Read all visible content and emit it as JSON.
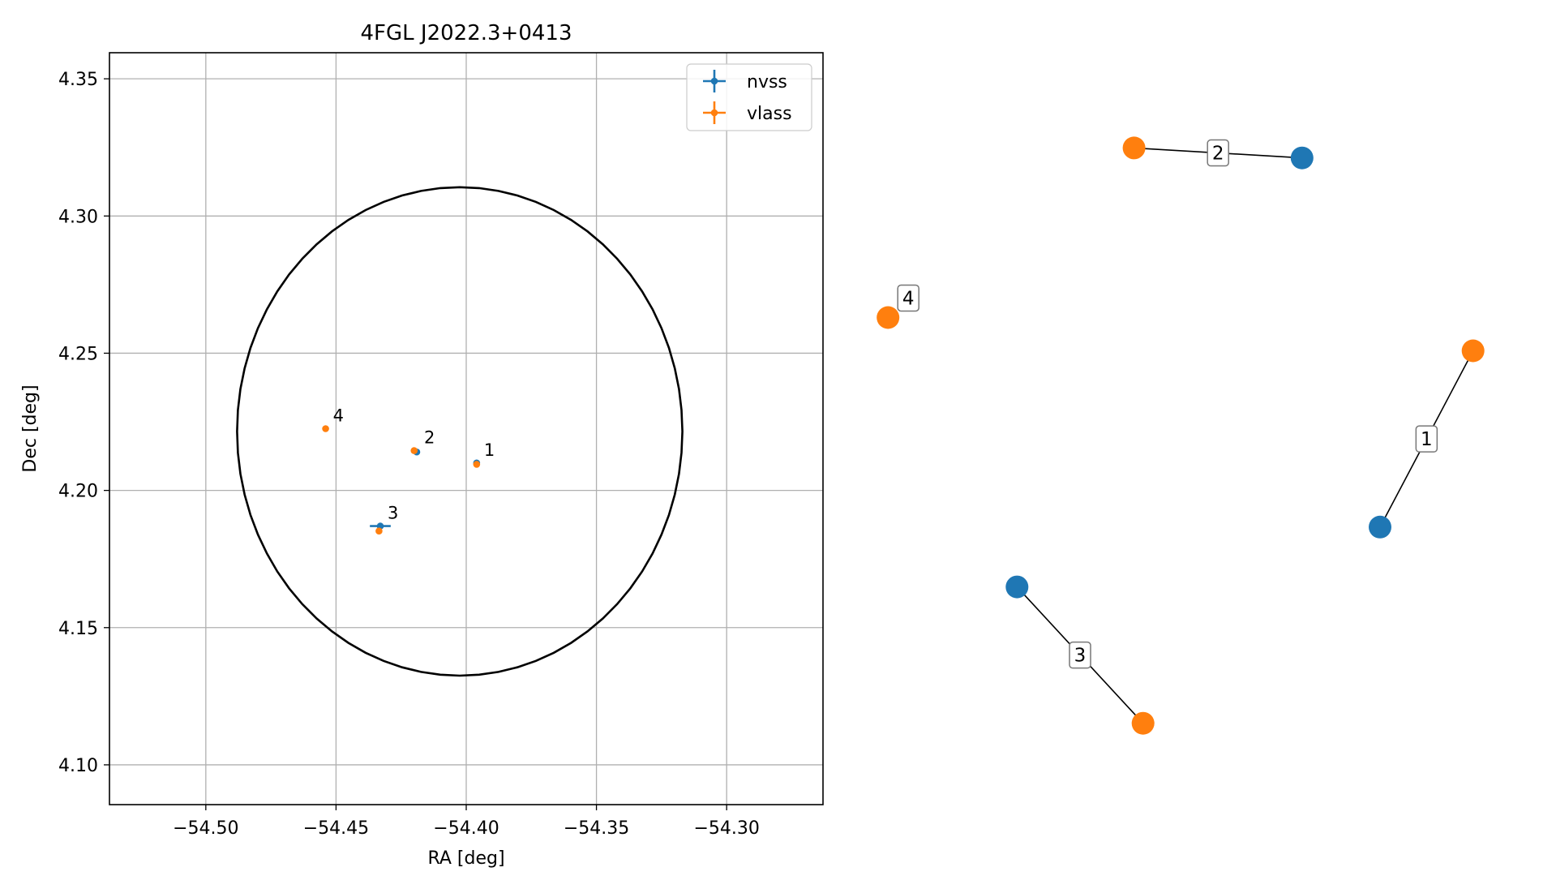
{
  "chart_data": [
    {
      "type": "scatter",
      "title": "4FGL J2022.3+0413",
      "xlabel": "RA [deg]",
      "ylabel": "Dec [deg]",
      "xlim": [
        -54.537,
        -54.263
      ],
      "ylim": [
        4.0855,
        4.3595
      ],
      "xticks": [
        -54.5,
        -54.45,
        -54.4,
        -54.35,
        -54.3
      ],
      "xtick_labels": [
        "−54.50",
        "−54.45",
        "−54.40",
        "−54.35",
        "−54.30"
      ],
      "yticks": [
        4.1,
        4.15,
        4.2,
        4.25,
        4.3,
        4.35
      ],
      "ytick_labels": [
        "4.10",
        "4.15",
        "4.20",
        "4.25",
        "4.30",
        "4.35"
      ],
      "grid": true,
      "legend_position": "top-right",
      "ellipse": {
        "center": [
          -54.4025,
          4.2215
        ],
        "semi_axis_ra": 0.0855,
        "semi_axis_dec": 0.089,
        "color": "#000000"
      },
      "series": [
        {
          "name": "nvss",
          "color": "#1f77b4",
          "points": [
            {
              "label": "1",
              "ra": -54.396,
              "dec": 4.21,
              "ra_err": 0.0005,
              "dec_err": 0.0005
            },
            {
              "label": "2",
              "ra": -54.419,
              "dec": 4.214,
              "ra_err": 0.0005,
              "dec_err": 0.0005
            },
            {
              "label": "3",
              "ra": -54.433,
              "dec": 4.187,
              "ra_err": 0.004,
              "dec_err": 0.001
            }
          ]
        },
        {
          "name": "vlass",
          "color": "#ff7f0e",
          "points": [
            {
              "label": "1",
              "ra": -54.396,
              "dec": 4.2095,
              "ra_err": 0.0003,
              "dec_err": 0.0003
            },
            {
              "label": "2",
              "ra": -54.42,
              "dec": 4.2145,
              "ra_err": 0.0003,
              "dec_err": 0.0003
            },
            {
              "label": "3",
              "ra": -54.4335,
              "dec": 4.1852,
              "ra_err": 0.0003,
              "dec_err": 0.0003
            },
            {
              "label": "4",
              "ra": -54.454,
              "dec": 4.2225,
              "ra_err": 0.0003,
              "dec_err": 0.0003
            }
          ]
        }
      ],
      "source_labels": [
        "1",
        "2",
        "3",
        "4"
      ]
    },
    {
      "type": "network",
      "axes_visible": false,
      "node_colors": {
        "nvss": "#1f77b4",
        "vlass": "#ff7f0e"
      },
      "nodes": [
        {
          "id": "n1",
          "kind": "nvss",
          "x": 0.8,
          "y": 0.36
        },
        {
          "id": "v1",
          "kind": "vlass",
          "x": 0.955,
          "y": 0.625
        },
        {
          "id": "n2",
          "kind": "nvss",
          "x": 0.67,
          "y": 0.915
        },
        {
          "id": "v2",
          "kind": "vlass",
          "x": 0.39,
          "y": 0.93
        },
        {
          "id": "n3",
          "kind": "nvss",
          "x": 0.195,
          "y": 0.27
        },
        {
          "id": "v3",
          "kind": "vlass",
          "x": 0.405,
          "y": 0.065
        },
        {
          "id": "v4",
          "kind": "vlass",
          "x": -0.02,
          "y": 0.675
        }
      ],
      "edges": [
        {
          "from": "n1",
          "to": "v1",
          "label": "1"
        },
        {
          "from": "v2",
          "to": "n2",
          "label": "2"
        },
        {
          "from": "n3",
          "to": "v3",
          "label": "3"
        }
      ],
      "isolated_labels": [
        {
          "node": "v4",
          "label": "4"
        }
      ]
    }
  ]
}
